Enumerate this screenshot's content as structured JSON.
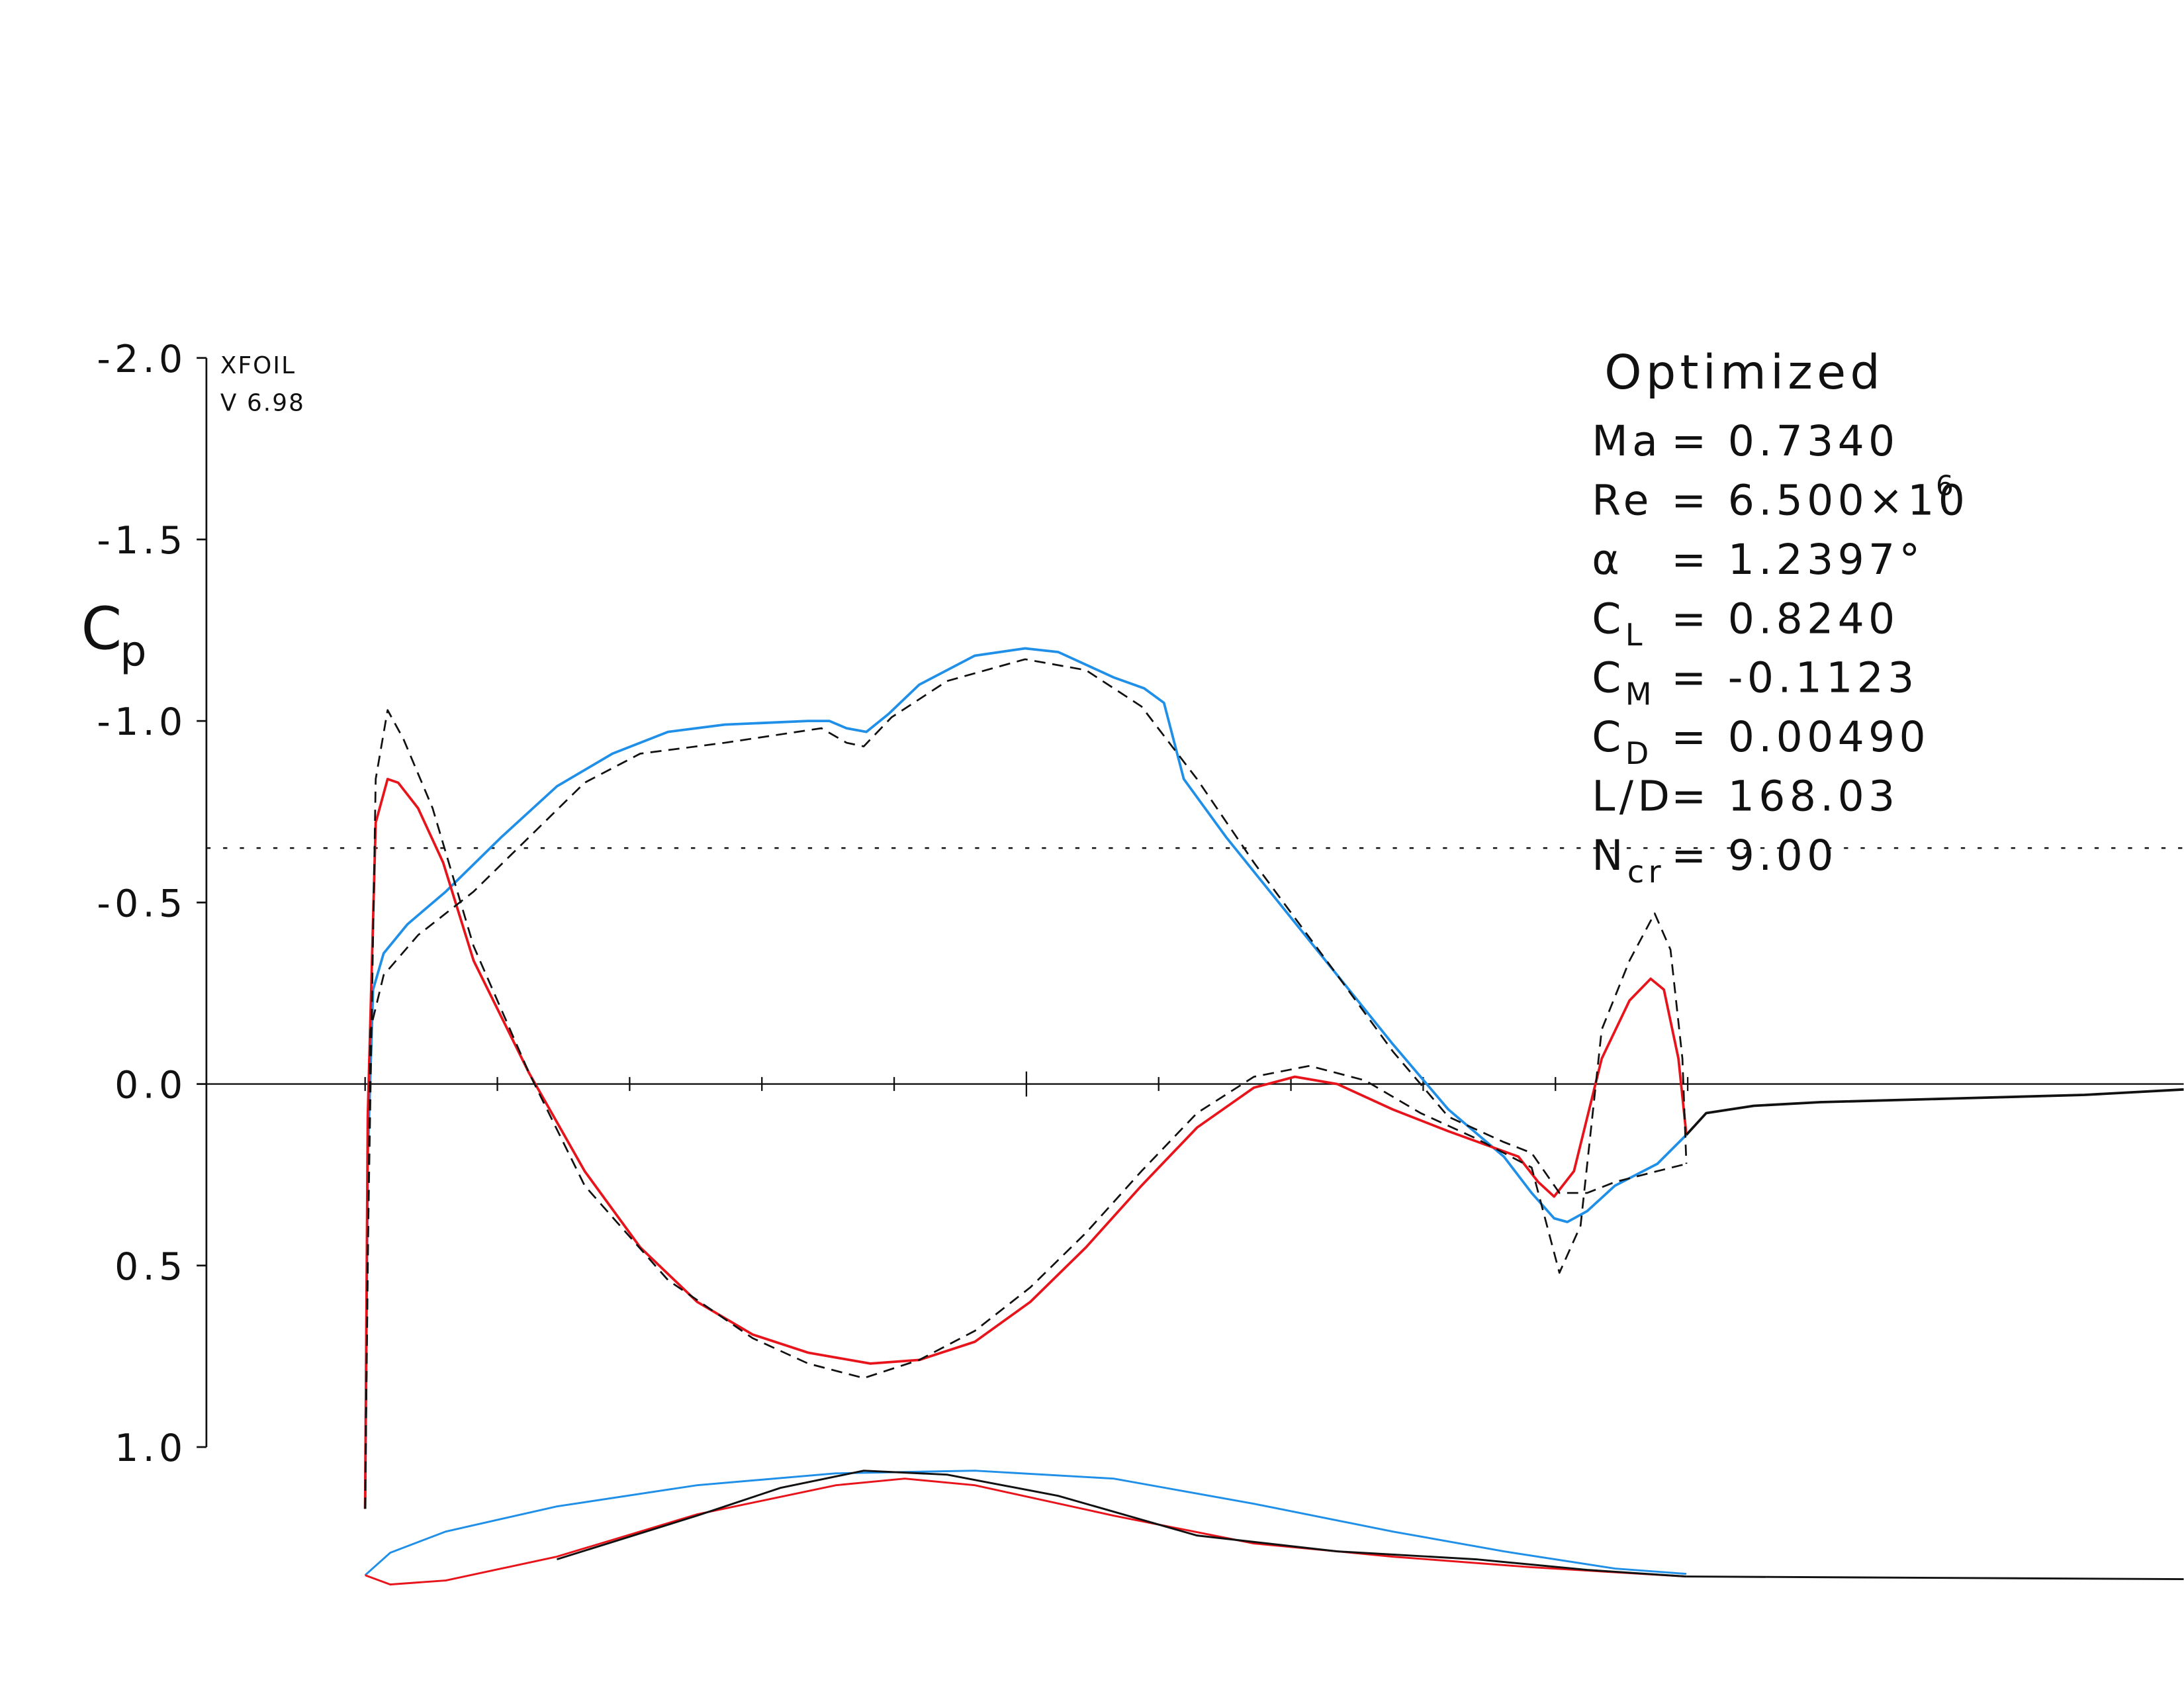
{
  "chart_data": {
    "type": "line",
    "program": "XFOIL",
    "version": "V 6.98",
    "ylabel": "C",
    "ylabel_sub": "p",
    "title": "Optimized",
    "info": [
      {
        "name": "Ma",
        "value": "= 0.7340"
      },
      {
        "name": "Re",
        "value": "= 6.500×10",
        "sup": "6"
      },
      {
        "name": "α",
        "value": "= 1.2397°"
      },
      {
        "name": "C",
        "sub": "L",
        "value": "= 0.8240"
      },
      {
        "name": "C",
        "sub": "M",
        "value": "= -0.1123"
      },
      {
        "name": "C",
        "sub": "D",
        "value": "= 0.00490"
      },
      {
        "name": "L/D",
        "value": "= 168.03"
      },
      {
        "name": "N",
        "sub": "cr",
        "value": "= 9.00"
      }
    ],
    "xlim": [
      -0.12,
      1.375
    ],
    "ylim": [
      -2.0,
      1.0
    ],
    "inverted_y": true,
    "yticks": [
      {
        "value": -2.0,
        "label": "-2.0"
      },
      {
        "value": -1.5,
        "label": "-1.5"
      },
      {
        "value": -1.0,
        "label": "-1.0"
      },
      {
        "value": -0.5,
        "label": "-0.5"
      },
      {
        "value": 0,
        "label": "0.0"
      },
      {
        "value": 0.5,
        "label": "0.5"
      },
      {
        "value": 1.0,
        "label": "1.0"
      }
    ],
    "xticks": [
      0,
      0.1,
      0.2,
      0.3,
      0.4,
      0.5,
      0.6,
      0.7,
      0.8,
      0.9,
      1.0
    ],
    "cp_star": -0.65,
    "series": [
      {
        "color": "#1f8fe8",
        "dash": false,
        "x": [
          0,
          0.002,
          0.006,
          0.014,
          0.032,
          0.061,
          0.103,
          0.145,
          0.187,
          0.229,
          0.272,
          0.335,
          0.351,
          0.364,
          0.379,
          0.396,
          0.419,
          0.461,
          0.499,
          0.524,
          0.566,
          0.589,
          0.604,
          0.619,
          0.651,
          0.693,
          0.735,
          0.777,
          0.819,
          0.861,
          0.882,
          0.899,
          0.909,
          0.924,
          0.945,
          0.977,
          0.999
        ],
        "values": [
          1.17,
          0.2,
          -0.26,
          -0.36,
          -0.44,
          -0.53,
          -0.68,
          -0.82,
          -0.91,
          -0.97,
          -0.99,
          -1.0,
          -1.0,
          -0.98,
          -0.97,
          -1.02,
          -1.1,
          -1.18,
          -1.2,
          -1.19,
          -1.12,
          -1.09,
          -1.05,
          -0.84,
          -0.68,
          -0.49,
          -0.3,
          -0.11,
          0.07,
          0.2,
          0.3,
          0.37,
          0.38,
          0.35,
          0.28,
          0.22,
          0.14
        ]
      },
      {
        "color": "#e8141c",
        "dash": false,
        "x": [
          0,
          0.002,
          0.008,
          0.017,
          0.025,
          0.04,
          0.059,
          0.082,
          0.124,
          0.166,
          0.208,
          0.251,
          0.293,
          0.335,
          0.382,
          0.419,
          0.461,
          0.503,
          0.545,
          0.587,
          0.629,
          0.672,
          0.703,
          0.735,
          0.777,
          0.819,
          0.872,
          0.887,
          0.899,
          0.914,
          0.935,
          0.956,
          0.972,
          0.982,
          0.993,
          0.999
        ],
        "values": [
          1.17,
          0.09,
          -0.72,
          -0.84,
          -0.83,
          -0.76,
          -0.61,
          -0.34,
          -0.03,
          0.24,
          0.45,
          0.6,
          0.69,
          0.74,
          0.77,
          0.76,
          0.71,
          0.6,
          0.45,
          0.28,
          0.12,
          0.01,
          -0.02,
          0.0,
          0.07,
          0.13,
          0.2,
          0.27,
          0.31,
          0.24,
          -0.07,
          -0.23,
          -0.29,
          -0.26,
          -0.07,
          0.14
        ]
      },
      {
        "color": "#111111",
        "dash": true,
        "x": [
          0,
          0.004,
          0.014,
          0.04,
          0.082,
          0.124,
          0.166,
          0.208,
          0.272,
          0.345,
          0.364,
          0.377,
          0.398,
          0.44,
          0.499,
          0.545,
          0.587,
          0.629,
          0.672,
          0.735,
          0.777,
          0.819,
          0.861,
          0.882,
          0.903,
          0.924,
          0.945,
          0.977,
          0.999
        ],
        "values": [
          1.17,
          -0.15,
          -0.3,
          -0.41,
          -0.53,
          -0.68,
          -0.83,
          -0.91,
          -0.94,
          -0.98,
          -0.94,
          -0.93,
          -1.01,
          -1.11,
          -1.17,
          -1.14,
          -1.04,
          -0.84,
          -0.61,
          -0.3,
          -0.09,
          0.09,
          0.16,
          0.19,
          0.3,
          0.3,
          0.27,
          0.24,
          0.22
        ]
      },
      {
        "color": "#111111",
        "dash": true,
        "x": [
          0,
          0.002,
          0.008,
          0.017,
          0.029,
          0.051,
          0.082,
          0.124,
          0.166,
          0.229,
          0.293,
          0.335,
          0.377,
          0.419,
          0.461,
          0.503,
          0.545,
          0.587,
          0.629,
          0.672,
          0.714,
          0.756,
          0.798,
          0.84,
          0.882,
          0.903,
          0.919,
          0.935,
          0.956,
          0.975,
          0.987,
          0.996,
          0.999
        ],
        "values": [
          1.17,
          0.47,
          -0.84,
          -1.03,
          -0.95,
          -0.76,
          -0.38,
          -0.03,
          0.28,
          0.54,
          0.7,
          0.77,
          0.81,
          0.76,
          0.68,
          0.56,
          0.41,
          0.24,
          0.08,
          -0.02,
          -0.05,
          -0.01,
          0.08,
          0.15,
          0.23,
          0.52,
          0.39,
          -0.15,
          -0.34,
          -0.47,
          -0.37,
          -0.07,
          0.22
        ]
      },
      {
        "color": "#111111",
        "dash": false,
        "x": [
          0.999,
          1.014,
          1.05,
          1.1,
          1.2,
          1.3,
          1.375
        ],
        "values": [
          0.14,
          0.08,
          0.06,
          0.05,
          0.04,
          0.03,
          0.015
        ]
      }
    ],
    "airfoil": [
      {
        "color": "#1f8fe8",
        "x": [
          0,
          0.019,
          0.061,
          0.145,
          0.251,
          0.356,
          0.461,
          0.566,
          0.672,
          0.777,
          0.861,
          0.945,
          0.999
        ],
        "y": [
          0,
          0.017,
          0.033,
          0.052,
          0.068,
          0.077,
          0.079,
          0.073,
          0.054,
          0.033,
          0.018,
          0.005,
          0.001
        ]
      },
      {
        "color": "#e8141c",
        "x": [
          0,
          0.019,
          0.061,
          0.145,
          0.251,
          0.356,
          0.408,
          0.461,
          0.566,
          0.672,
          0.777,
          0.882,
          0.999
        ],
        "y": [
          0,
          -0.007,
          -0.004,
          0.014,
          0.046,
          0.068,
          0.073,
          0.068,
          0.045,
          0.024,
          0.014,
          0.006,
          -0.001
        ]
      },
      {
        "color": "#111111",
        "x": [
          0.145,
          0.251,
          0.314,
          0.377,
          0.44,
          0.524,
          0.629,
          0.735,
          0.84,
          0.924,
          0.999
        ],
        "y": [
          0.012,
          0.045,
          0.066,
          0.079,
          0.076,
          0.06,
          0.03,
          0.018,
          0.012,
          0.004,
          -0.001
        ]
      },
      {
        "color": "#111111",
        "x": [
          0.999,
          1.375
        ],
        "y": [
          -0.001,
          -0.003
        ]
      }
    ]
  }
}
